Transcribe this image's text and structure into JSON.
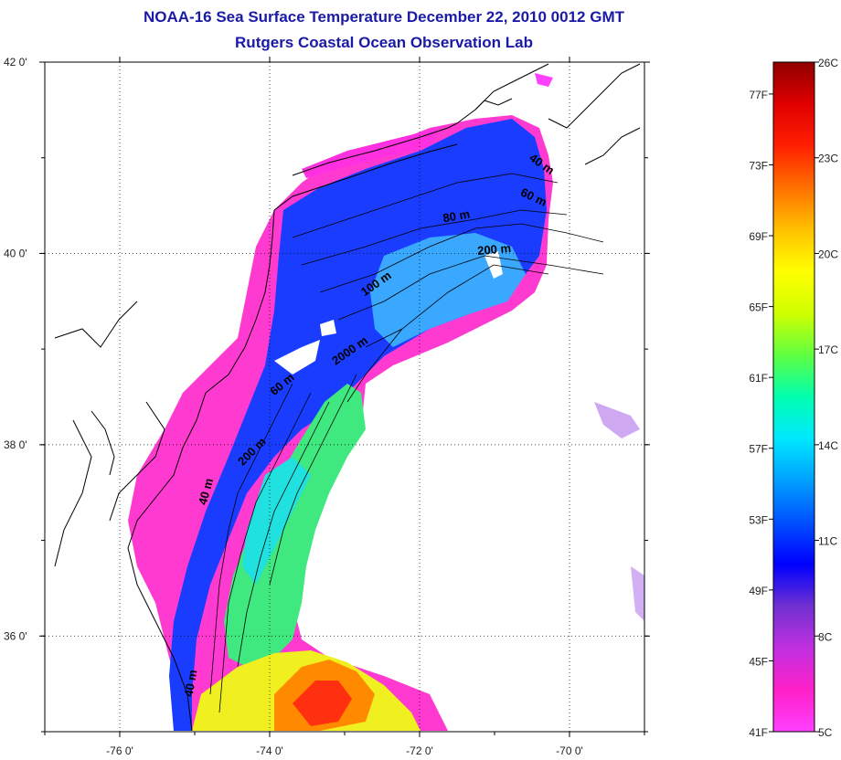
{
  "title": "NOAA-16 Sea Surface Temperature December 22, 2010 0012 GMT",
  "subtitle": "Rutgers Coastal Ocean Observation Lab",
  "map": {
    "lon_range": [
      -77.0,
      -69.0
    ],
    "lat_range": [
      35.0,
      42.0
    ],
    "lon_ticks": [
      {
        "value": -76,
        "label": "-76 0'"
      },
      {
        "value": -74,
        "label": "-74 0'"
      },
      {
        "value": -72,
        "label": "-72 0'"
      },
      {
        "value": -70,
        "label": "-70 0'"
      }
    ],
    "lat_ticks": [
      {
        "value": 42,
        "label": "42 0'"
      },
      {
        "value": 40,
        "label": "40 0'"
      },
      {
        "value": 38,
        "label": "38 0'"
      },
      {
        "value": 36,
        "label": "36 0'"
      }
    ],
    "grid": "dotted",
    "depth_labels": [
      {
        "text": "40 m",
        "lon": -70.4,
        "lat": 40.9,
        "rotate": 35
      },
      {
        "text": "60 m",
        "lon": -70.5,
        "lat": 40.55,
        "rotate": 25
      },
      {
        "text": "80 m",
        "lon": -71.5,
        "lat": 40.35,
        "rotate": -10
      },
      {
        "text": "200 m",
        "lon": -71.0,
        "lat": 40.0,
        "rotate": -5
      },
      {
        "text": "100 m",
        "lon": -72.55,
        "lat": 39.65,
        "rotate": -35
      },
      {
        "text": "2000 m",
        "lon": -72.9,
        "lat": 38.95,
        "rotate": -35
      },
      {
        "text": "60 m",
        "lon": -73.8,
        "lat": 38.6,
        "rotate": -40
      },
      {
        "text": "200 m",
        "lon": -74.2,
        "lat": 37.9,
        "rotate": -45
      },
      {
        "text": "40 m",
        "lon": -74.8,
        "lat": 37.5,
        "rotate": -75
      },
      {
        "text": "40 m",
        "lon": -75.0,
        "lat": 35.5,
        "rotate": -80
      }
    ]
  },
  "colorbar": {
    "min_c": 5,
    "max_c": 26,
    "colors": [
      "#ff40ff",
      "#ff20c8",
      "#c030e0",
      "#7030d0",
      "#0000ff",
      "#0050ff",
      "#00a0ff",
      "#00e8ff",
      "#00ffb0",
      "#60ff40",
      "#d0ff00",
      "#ffff00",
      "#ffc000",
      "#ff7000",
      "#ff2000",
      "#e00000",
      "#900000"
    ],
    "celsius": [
      {
        "value": 26,
        "label": "26C"
      },
      {
        "value": 23,
        "label": "23C"
      },
      {
        "value": 20,
        "label": "20C"
      },
      {
        "value": 17,
        "label": "17C"
      },
      {
        "value": 14,
        "label": "14C"
      },
      {
        "value": 11,
        "label": "11C"
      },
      {
        "value": 8,
        "label": "8C"
      },
      {
        "value": 5,
        "label": "5C"
      }
    ],
    "fahrenheit": [
      {
        "value": 77,
        "label": "77F"
      },
      {
        "value": 73,
        "label": "73F"
      },
      {
        "value": 69,
        "label": "69F"
      },
      {
        "value": 65,
        "label": "65F"
      },
      {
        "value": 61,
        "label": "61F"
      },
      {
        "value": 57,
        "label": "57F"
      },
      {
        "value": 53,
        "label": "53F"
      },
      {
        "value": 49,
        "label": "49F"
      },
      {
        "value": 45,
        "label": "45F"
      },
      {
        "value": 41,
        "label": "41F"
      }
    ]
  }
}
